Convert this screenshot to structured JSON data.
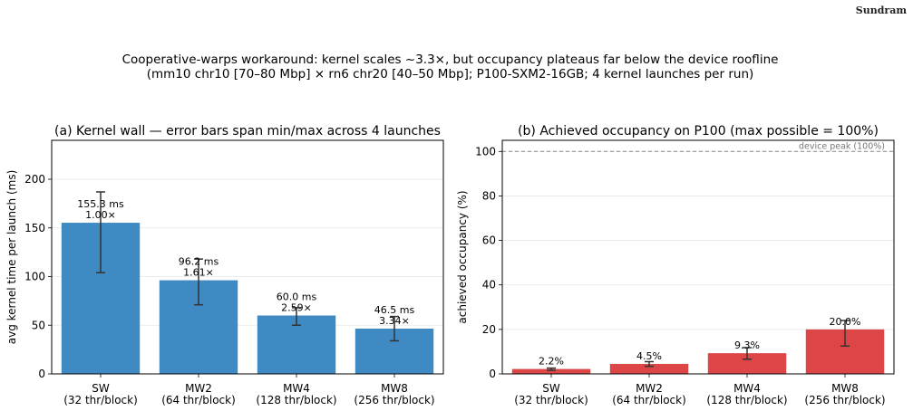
{
  "header": {
    "brand": "Sundram"
  },
  "figure": {
    "title_line1": "Cooperative-warps workaround: kernel scales ~3.3×, but occupancy plateaus far below the device roofline",
    "title_line2": "(mm10 chr10 [70–80 Mbp] × rn6 chr20 [40–50 Mbp];  P100-SXM2-16GB; 4 kernel launches per run)"
  },
  "chart_data": [
    {
      "type": "bar",
      "title": "(a) Kernel wall — error bars span min/max across 4 launches",
      "xlabel": "",
      "ylabel": "avg kernel time per launch  (ms)",
      "categories": [
        "SW\n(32 thr/block)",
        "MW2\n(64 thr/block)",
        "MW4\n(128 thr/block)",
        "MW8\n(256 thr/block)"
      ],
      "values": [
        155.3,
        96.2,
        60.0,
        46.5
      ],
      "error_min": [
        104,
        71,
        50,
        34
      ],
      "error_max": [
        187,
        118,
        68,
        59
      ],
      "data_labels": [
        "155.3 ms\n1.00×",
        "96.2 ms\n1.61×",
        "60.0 ms\n2.59×",
        "46.5 ms\n3.34×"
      ],
      "ylim": [
        0,
        240
      ],
      "yticks": [
        0,
        50,
        100,
        150,
        200
      ],
      "color": "#3f8ac2",
      "grid": "y"
    },
    {
      "type": "bar",
      "title": "(b) Achieved occupancy on P100 (max possible = 100%)",
      "xlabel": "",
      "ylabel": "achieved occupancy  (%)",
      "categories": [
        "SW\n(32 thr/block)",
        "MW2\n(64 thr/block)",
        "MW4\n(128 thr/block)",
        "MW8\n(256 thr/block)"
      ],
      "values": [
        2.2,
        4.5,
        9.3,
        20.0
      ],
      "error_min": [
        1.6,
        3.4,
        6.6,
        12.5
      ],
      "error_max": [
        2.6,
        5.5,
        11.8,
        24.0
      ],
      "data_labels": [
        "2.2%",
        "4.5%",
        "9.3%",
        "20.0%"
      ],
      "ylim": [
        0,
        105
      ],
      "yticks": [
        0,
        20,
        40,
        60,
        80,
        100
      ],
      "reference_line": {
        "value": 100,
        "label": "device peak (100%)"
      },
      "color": "#dd4646",
      "grid": "y"
    }
  ]
}
